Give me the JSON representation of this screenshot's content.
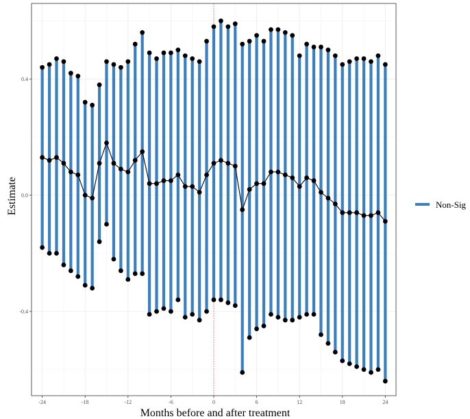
{
  "chart_data": {
    "type": "line",
    "title": "",
    "xlabel": "Months before and after treatment",
    "ylabel": "Estimate",
    "xlim": [
      -25.5,
      25.5
    ],
    "ylim": [
      -0.69,
      0.66
    ],
    "x_ticks": [
      -24,
      -18,
      -12,
      -6,
      0,
      6,
      12,
      18,
      24
    ],
    "x_tick_labels": [
      "-24",
      "-18",
      "-12",
      "-6",
      "0",
      "6",
      "12",
      "18",
      "24"
    ],
    "y_ticks": [
      -0.4,
      0.0,
      0.4
    ],
    "y_tick_labels": [
      "-0.4",
      "0.0",
      "0.4"
    ],
    "grid": true,
    "reference_line": {
      "x": 0,
      "style": "dotted",
      "color": "#e06666"
    },
    "legend": {
      "position": "right",
      "entries": [
        "Non-Sig"
      ]
    },
    "series": [
      {
        "name": "Non-Sig",
        "kind": "confidence-interval",
        "color": "#3a7fbf",
        "x": [
          -24,
          -23,
          -22,
          -21,
          -20,
          -19,
          -18,
          -17,
          -16,
          -15,
          -14,
          -13,
          -12,
          -11,
          -10,
          -9,
          -8,
          -7,
          -6,
          -5,
          -4,
          -3,
          -2,
          -1,
          0,
          1,
          2,
          3,
          4,
          5,
          6,
          7,
          8,
          9,
          10,
          11,
          12,
          13,
          14,
          15,
          16,
          17,
          18,
          19,
          20,
          21,
          22,
          23,
          24
        ],
        "upper": [
          0.44,
          0.45,
          0.47,
          0.46,
          0.42,
          0.41,
          0.32,
          0.31,
          0.38,
          0.46,
          0.45,
          0.44,
          0.46,
          0.52,
          0.56,
          0.49,
          0.47,
          0.49,
          0.49,
          0.5,
          0.48,
          0.47,
          0.46,
          0.53,
          0.58,
          0.6,
          0.58,
          0.59,
          0.52,
          0.53,
          0.55,
          0.53,
          0.57,
          0.57,
          0.56,
          0.55,
          0.48,
          0.52,
          0.51,
          0.51,
          0.5,
          0.48,
          0.45,
          0.46,
          0.47,
          0.47,
          0.46,
          0.48,
          0.45
        ],
        "estimate": [
          0.13,
          0.12,
          0.13,
          0.11,
          0.08,
          0.07,
          0.0,
          -0.01,
          0.11,
          0.18,
          0.11,
          0.09,
          0.08,
          0.12,
          0.15,
          0.04,
          0.04,
          0.05,
          0.05,
          0.07,
          0.03,
          0.03,
          0.01,
          0.07,
          0.11,
          0.12,
          0.11,
          0.1,
          -0.05,
          0.02,
          0.04,
          0.04,
          0.08,
          0.08,
          0.07,
          0.06,
          0.03,
          0.06,
          0.05,
          0.01,
          -0.01,
          -0.03,
          -0.06,
          -0.06,
          -0.06,
          -0.07,
          -0.07,
          -0.06,
          -0.09
        ],
        "lower": [
          -0.18,
          -0.2,
          -0.2,
          -0.24,
          -0.26,
          -0.28,
          -0.31,
          -0.32,
          -0.16,
          -0.1,
          -0.22,
          -0.26,
          -0.29,
          -0.27,
          -0.27,
          -0.41,
          -0.4,
          -0.39,
          -0.4,
          -0.36,
          -0.42,
          -0.41,
          -0.43,
          -0.4,
          -0.36,
          -0.36,
          -0.37,
          -0.38,
          -0.61,
          -0.49,
          -0.46,
          -0.45,
          -0.41,
          -0.42,
          -0.43,
          -0.43,
          -0.42,
          -0.41,
          -0.41,
          -0.48,
          -0.51,
          -0.54,
          -0.57,
          -0.58,
          -0.59,
          -0.6,
          -0.61,
          -0.6,
          -0.64
        ]
      }
    ],
    "colors": {
      "interval": "#3a7fbf",
      "point": "#000000",
      "line": "#000000",
      "reference": "#e06666",
      "grid": "#ebebeb",
      "frame": "#333333"
    }
  }
}
